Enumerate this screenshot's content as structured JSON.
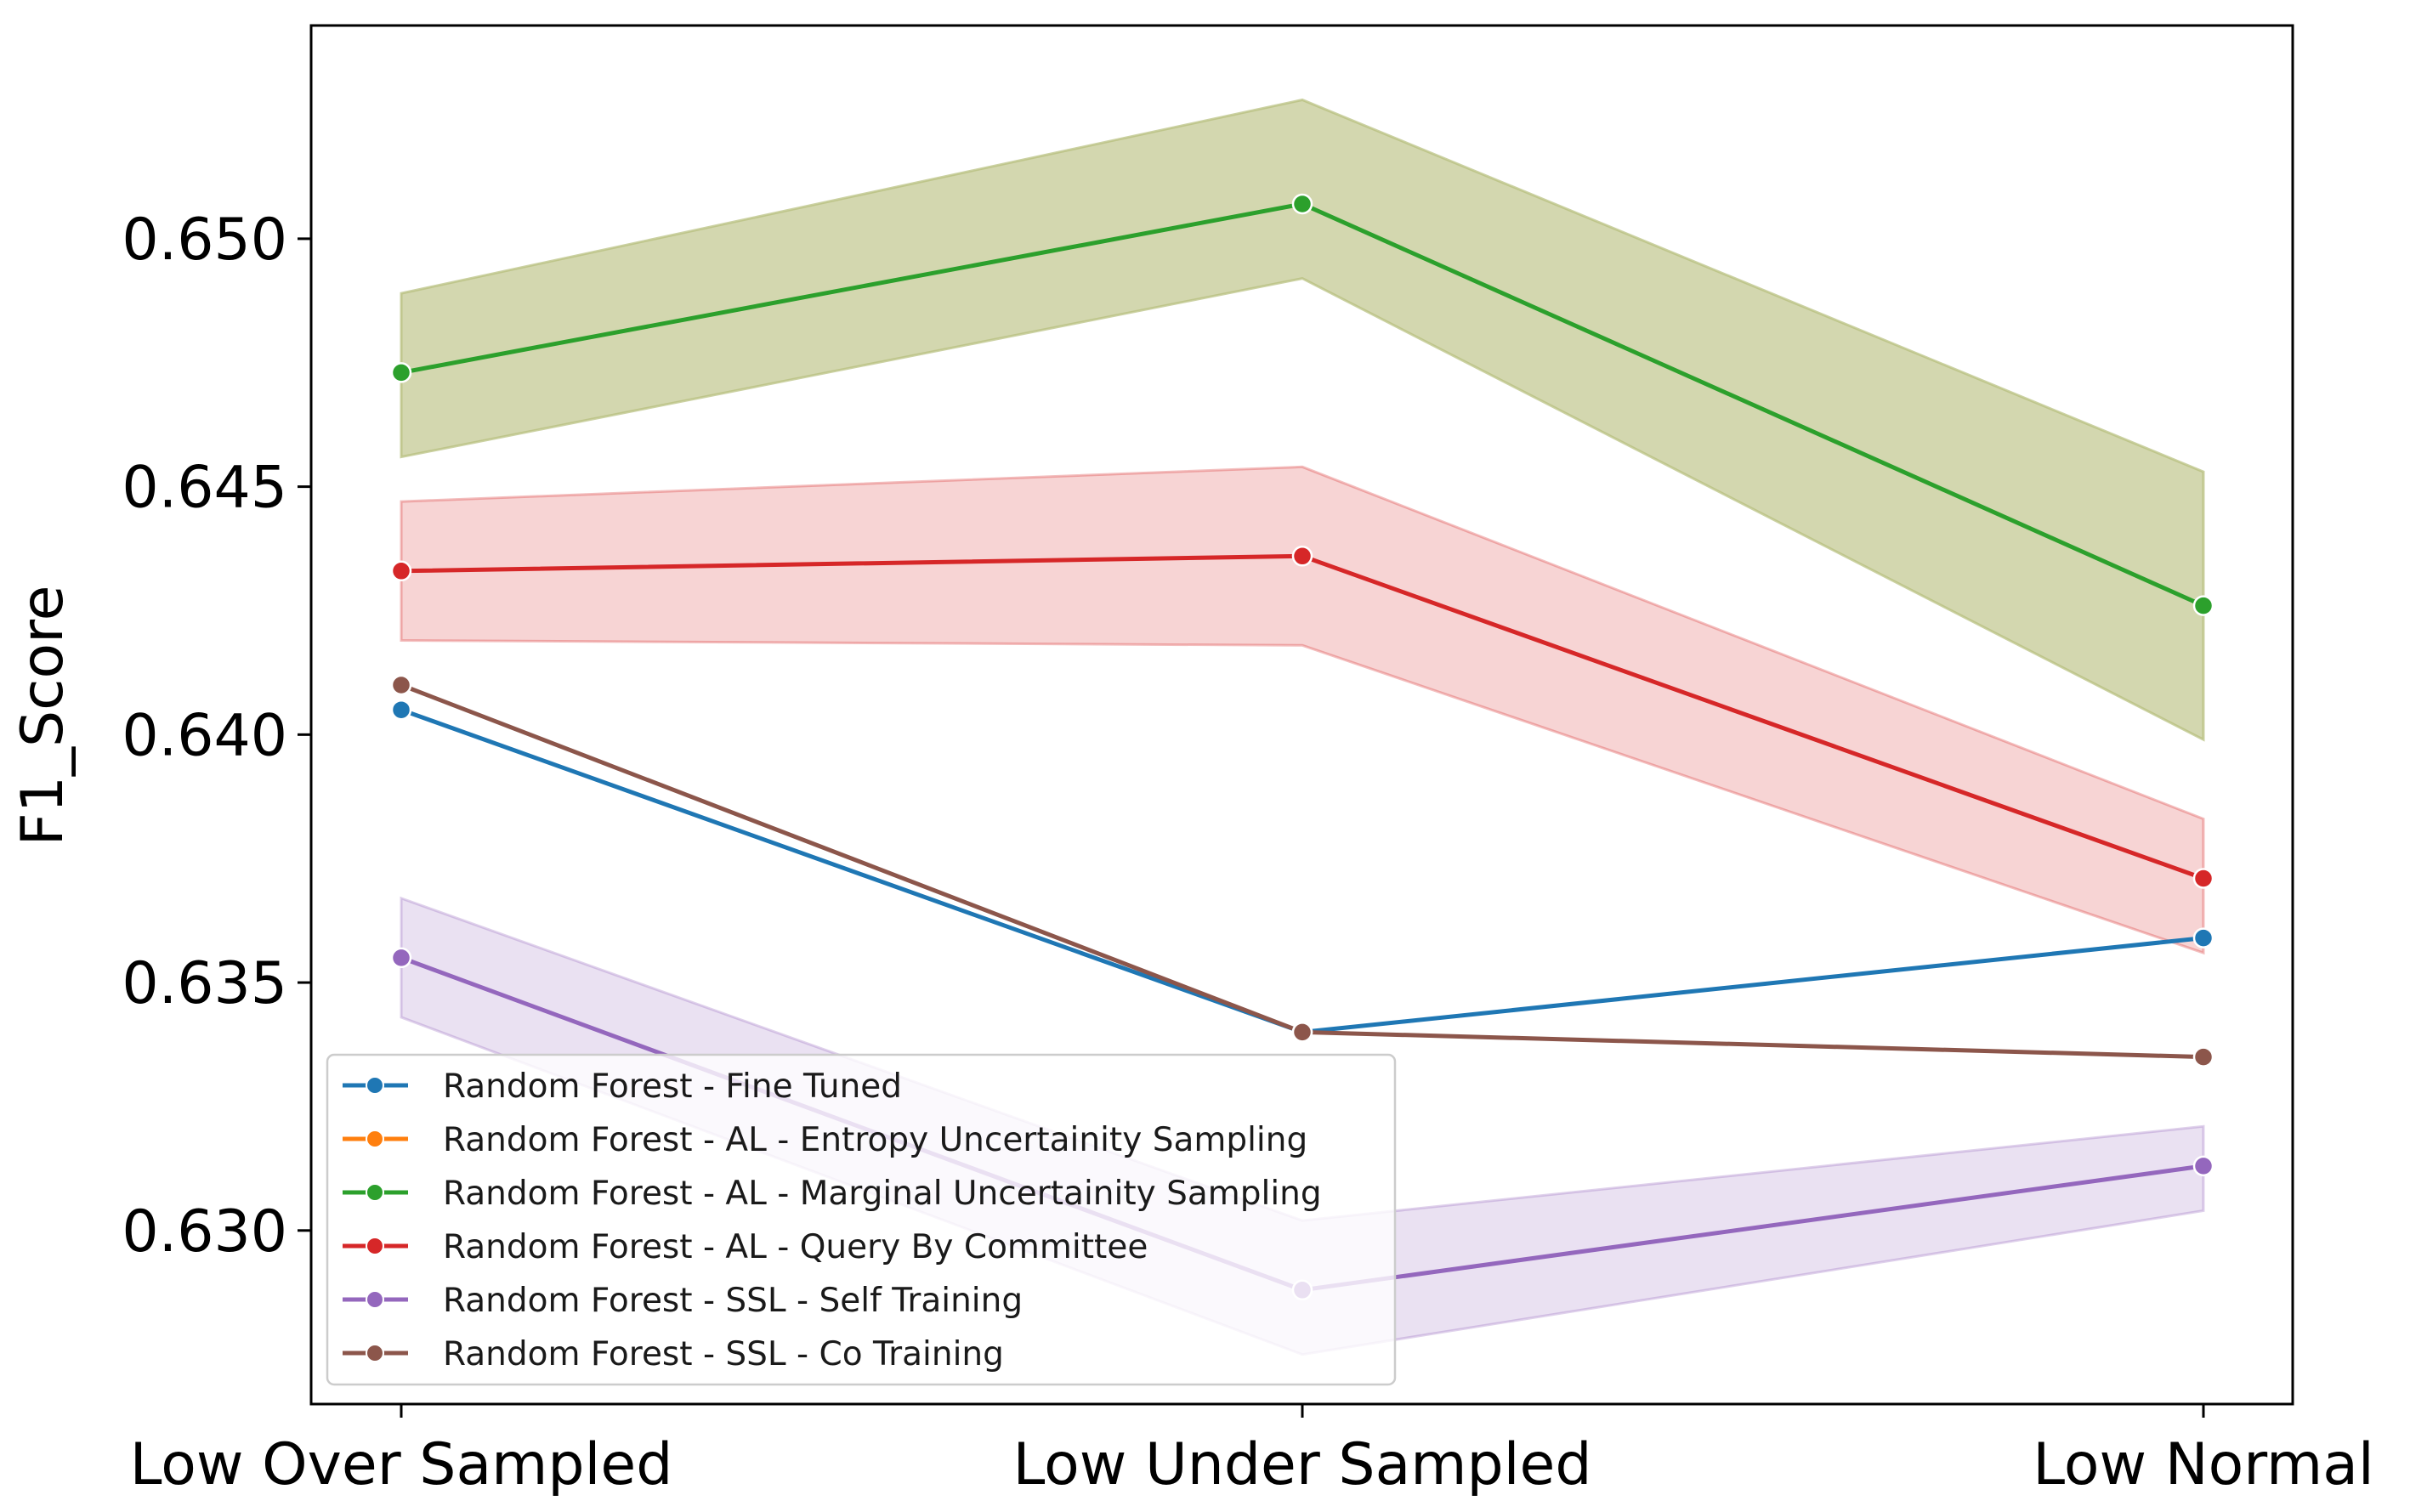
{
  "chart_data": {
    "type": "line",
    "title": "",
    "xlabel": "",
    "ylabel": "F1_Score",
    "categories": [
      "Low Over Sampled",
      "Low Under Sampled",
      "Low Normal"
    ],
    "ylim": [
      0.6265,
      0.6543
    ],
    "yticks": [
      0.63,
      0.635,
      0.64,
      0.645,
      0.65
    ],
    "ytick_labels": [
      "0.630",
      "0.635",
      "0.640",
      "0.645",
      "0.650"
    ],
    "grid": false,
    "legend_position": "bottom-left",
    "series": [
      {
        "name": "Random Forest - Fine Tuned",
        "color": "#1f77b4",
        "values": [
          0.6405,
          0.634,
          0.6359
        ]
      },
      {
        "name": "Random Forest - AL - Entropy Uncertainity Sampling",
        "color": "#ff7f0e",
        "values": [
          0.6473,
          0.6507,
          0.6426
        ]
      },
      {
        "name": "Random Forest - AL - Marginal Uncertainity Sampling",
        "color": "#2ca02c",
        "values": [
          0.6473,
          0.6507,
          0.6426
        ],
        "band_lower": [
          0.6456,
          0.6492,
          0.6399
        ],
        "band_upper": [
          0.6489,
          0.6528,
          0.6453
        ]
      },
      {
        "name": "Random Forest - AL - Query By Committee",
        "color": "#d62728",
        "values": [
          0.6433,
          0.6436,
          0.6371
        ],
        "band_lower": [
          0.6419,
          0.6418,
          0.6356
        ],
        "band_upper": [
          0.6447,
          0.6454,
          0.6383
        ]
      },
      {
        "name": "Random Forest - SSL - Self Training",
        "color": "#9467bd",
        "values": [
          0.6355,
          0.6288,
          0.6313
        ],
        "band_lower": [
          0.6343,
          0.6275,
          0.6304
        ],
        "band_upper": [
          0.6367,
          0.6302,
          0.6321
        ]
      },
      {
        "name": "Random Forest - SSL - Co Training",
        "color": "#8c564b",
        "values": [
          0.641,
          0.634,
          0.6335
        ]
      }
    ],
    "band_color_overlap": "#b5bd7a"
  }
}
